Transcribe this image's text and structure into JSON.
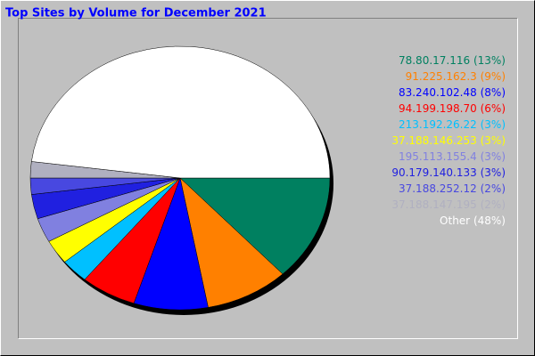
{
  "chart_data": {
    "type": "pie",
    "title": "Top Sites by Volume for December 2021",
    "categories": [
      "78.80.17.116",
      "91.225.162.3",
      "83.240.102.48",
      "94.199.198.70",
      "213.192.26.22",
      "37.188.146.253",
      "195.113.155.4",
      "90.179.140.133",
      "37.188.252.12",
      "37.188.147.195",
      "Other"
    ],
    "values": [
      13,
      9,
      8,
      6,
      3,
      3,
      3,
      3,
      2,
      2,
      48
    ],
    "value_labels": [
      "(13%)",
      "(9%)",
      "(8%)",
      "(6%)",
      "(3%)",
      "(3%)",
      "(3%)",
      "(3%)",
      "(2%)",
      "(2%)",
      "(48%)"
    ],
    "colors": [
      "#008060",
      "#FF8000",
      "#0000FF",
      "#FF0000",
      "#00C0FF",
      "#FFFF00",
      "#8080E0",
      "#2020E0",
      "#4848E0",
      "#B0B0C0",
      "#FFFFFF"
    ]
  }
}
